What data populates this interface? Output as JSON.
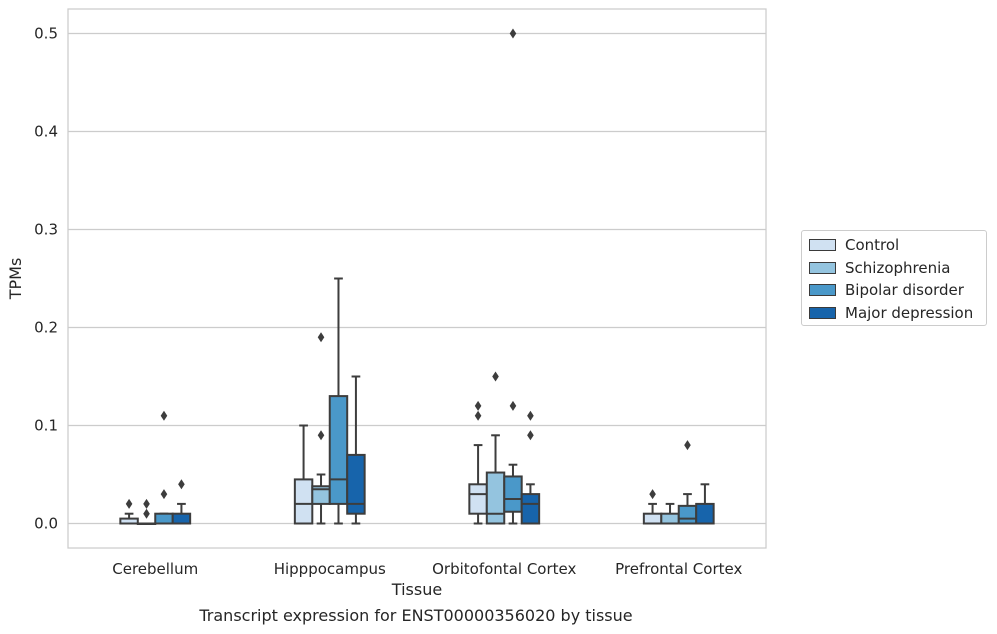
{
  "caption": "Transcript expression for ENST00000356020 by tissue",
  "chart_data": {
    "type": "box",
    "title": "",
    "xlabel": "Tissue",
    "ylabel": "TPMs",
    "ylim": [
      -0.025,
      0.525
    ],
    "yticks": [
      0.0,
      0.1,
      0.2,
      0.3,
      0.4,
      0.5
    ],
    "ytick_labels": [
      "0.0",
      "0.1",
      "0.2",
      "0.3",
      "0.4",
      "0.5"
    ],
    "grid": "horizontal",
    "legend_position": "right",
    "categories": [
      "Cerebellum",
      "Hipppocampus",
      "Orbitofontal Cortex",
      "Prefrontal Cortex"
    ],
    "series": [
      {
        "name": "Control",
        "color": "#d0e1f2",
        "boxes": [
          {
            "whisker_low": 0.0,
            "q1": 0.0,
            "median": 0.0,
            "q3": 0.005,
            "whisker_high": 0.01,
            "outliers": [
              0.02
            ]
          },
          {
            "whisker_low": 0.0,
            "q1": 0.0,
            "median": 0.02,
            "q3": 0.045,
            "whisker_high": 0.1,
            "outliers": []
          },
          {
            "whisker_low": 0.0,
            "q1": 0.01,
            "median": 0.03,
            "q3": 0.04,
            "whisker_high": 0.08,
            "outliers": [
              0.11,
              0.12
            ]
          },
          {
            "whisker_low": 0.0,
            "q1": 0.0,
            "median": 0.0,
            "q3": 0.01,
            "whisker_high": 0.02,
            "outliers": [
              0.03
            ]
          }
        ]
      },
      {
        "name": "Schizophrenia",
        "color": "#94c4df",
        "boxes": [
          {
            "whisker_low": 0.0,
            "q1": 0.0,
            "median": 0.0,
            "q3": 0.0,
            "whisker_high": 0.0,
            "outliers": [
              0.01,
              0.02
            ]
          },
          {
            "whisker_low": 0.0,
            "q1": 0.02,
            "median": 0.035,
            "q3": 0.038,
            "whisker_high": 0.05,
            "outliers": [
              0.09,
              0.19
            ]
          },
          {
            "whisker_low": 0.0,
            "q1": 0.0,
            "median": 0.01,
            "q3": 0.052,
            "whisker_high": 0.09,
            "outliers": [
              0.15
            ]
          },
          {
            "whisker_low": 0.0,
            "q1": 0.0,
            "median": 0.0,
            "q3": 0.01,
            "whisker_high": 0.02,
            "outliers": []
          }
        ]
      },
      {
        "name": "Bipolar disorder",
        "color": "#4a98c9",
        "boxes": [
          {
            "whisker_low": 0.0,
            "q1": 0.0,
            "median": 0.0,
            "q3": 0.01,
            "whisker_high": 0.01,
            "outliers": [
              0.03,
              0.11
            ]
          },
          {
            "whisker_low": 0.0,
            "q1": 0.02,
            "median": 0.045,
            "q3": 0.13,
            "whisker_high": 0.25,
            "outliers": []
          },
          {
            "whisker_low": 0.0,
            "q1": 0.012,
            "median": 0.025,
            "q3": 0.048,
            "whisker_high": 0.06,
            "outliers": [
              0.12,
              0.5
            ]
          },
          {
            "whisker_low": 0.0,
            "q1": 0.0,
            "median": 0.005,
            "q3": 0.018,
            "whisker_high": 0.03,
            "outliers": [
              0.08
            ]
          }
        ]
      },
      {
        "name": "Major depression",
        "color": "#1764ab",
        "boxes": [
          {
            "whisker_low": 0.0,
            "q1": 0.0,
            "median": 0.0,
            "q3": 0.01,
            "whisker_high": 0.02,
            "outliers": [
              0.04
            ]
          },
          {
            "whisker_low": 0.0,
            "q1": 0.01,
            "median": 0.02,
            "q3": 0.07,
            "whisker_high": 0.15,
            "outliers": []
          },
          {
            "whisker_low": 0.0,
            "q1": 0.0,
            "median": 0.02,
            "q3": 0.03,
            "whisker_high": 0.04,
            "outliers": [
              0.09,
              0.11
            ]
          },
          {
            "whisker_low": 0.0,
            "q1": 0.0,
            "median": 0.0,
            "q3": 0.02,
            "whisker_high": 0.04,
            "outliers": []
          }
        ]
      }
    ]
  }
}
